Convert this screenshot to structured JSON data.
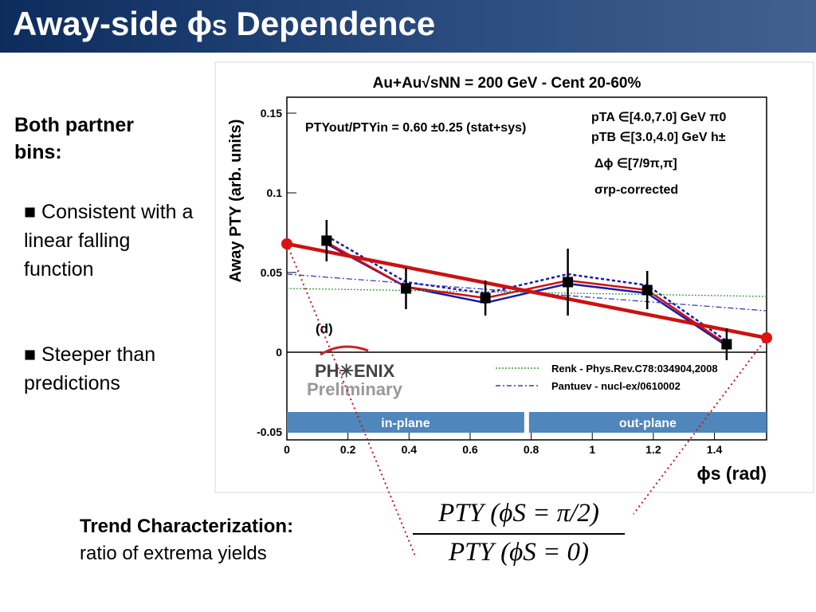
{
  "slide": {
    "title_main": "Away-side ",
    "title_phi": "ϕ",
    "title_sub": "S",
    "title_rest": " Dependence",
    "heading": "Both partner bins:",
    "bullet1": "■ Consistent with a linear falling function",
    "bullet2": "■ Steeper than predictions",
    "trend_label": "Trend Characterization:",
    "trend_desc": "ratio of extrema yields",
    "formula_numerator": "PTY (ϕS = π/2)",
    "formula_denominator": "PTY (ϕS = 0)"
  },
  "chart_data": {
    "type": "line",
    "title": "Au+Au√sNN = 200 GeV - Cent 20-60%",
    "xlabel": "ϕs (rad)",
    "ylabel": "Away PTY (arb. units)",
    "xlim": [
      0,
      1.5708
    ],
    "ylim": [
      -0.055,
      0.16
    ],
    "xticks": [
      0,
      0.2,
      0.4,
      0.6,
      0.8,
      1,
      1.2,
      1.4
    ],
    "xtick_labels": [
      "0",
      "0.2",
      "0.4",
      "0.6",
      "0.8",
      "1",
      "1.2",
      "1.4"
    ],
    "yticks": [
      -0.05,
      0,
      0.05,
      0.1,
      0.15
    ],
    "ytick_labels": [
      "-0.05",
      "0",
      "0.05",
      "0.1",
      "0.15"
    ],
    "series": [
      {
        "kind": "data_points",
        "x": [
          0.13,
          0.39,
          0.65,
          0.92,
          1.18,
          1.44
        ],
        "y": [
          0.07,
          0.04,
          0.034,
          0.044,
          0.039,
          0.005
        ],
        "yerr": [
          0.013,
          0.013,
          0.011,
          0.021,
          0.012,
          0.01
        ],
        "color": "#000000"
      },
      {
        "kind": "band_lower",
        "x": [
          0.13,
          0.39,
          0.65,
          0.92,
          1.18,
          1.44
        ],
        "y": [
          0.068,
          0.041,
          0.031,
          0.043,
          0.037,
          0.004
        ],
        "color": "#1a1aa8"
      },
      {
        "kind": "band_upper",
        "x": [
          0.13,
          0.39,
          0.65,
          0.92,
          1.18,
          1.44
        ],
        "y": [
          0.073,
          0.044,
          0.037,
          0.049,
          0.042,
          0.007
        ],
        "color": "#1a1aa8"
      },
      {
        "kind": "band_red",
        "x": [
          0.13,
          0.39,
          0.65,
          0.92,
          1.18,
          1.44
        ],
        "y": [
          0.069,
          0.041,
          0.034,
          0.045,
          0.039,
          0.005
        ],
        "color": "#cc1111"
      },
      {
        "name": "Renk - Phys.Rev.C78:034904,2008",
        "kind": "renk",
        "x": [
          0,
          1.5708
        ],
        "y": [
          0.04,
          0.035
        ],
        "color": "#3a9a3a"
      },
      {
        "name": "Pantuev - nucl-ex/0610002",
        "kind": "pantuev",
        "x": [
          0,
          1.5708
        ],
        "y": [
          0.049,
          0.026
        ],
        "color": "#3a3ab8"
      },
      {
        "kind": "linear_fit",
        "x": [
          0,
          1.5708
        ],
        "y": [
          0.068,
          0.009
        ],
        "color": "#cc1111"
      }
    ],
    "ratio_annotation": "PTYout/PTYin = 0.60 ±0.25 (stat+sys)",
    "cuts": [
      "pTA ∈[4.0,7.0] GeV π0",
      "pTB ∈[3.0,4.0] GeV h±",
      "Δϕ ∈[7/9π,π]",
      "σrp-corrected"
    ],
    "panel_label": "(d)",
    "logo": "PHENIX Preliminary",
    "regions": [
      {
        "label": "in-plane",
        "x_range": [
          0,
          0.785
        ]
      },
      {
        "label": "out-plane",
        "x_range": [
          0.785,
          1.5708
        ]
      }
    ]
  }
}
